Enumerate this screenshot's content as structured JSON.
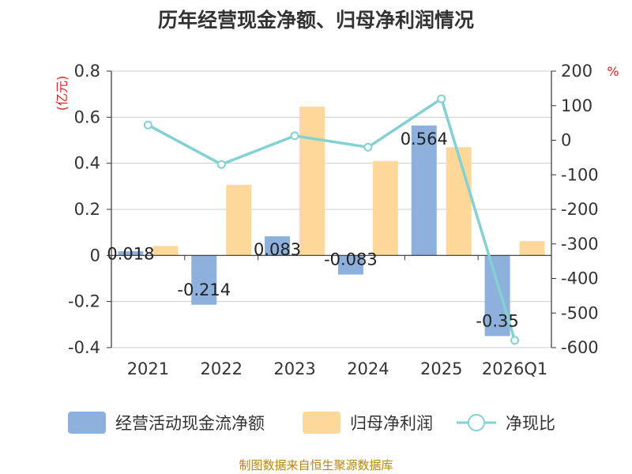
{
  "chart_data": {
    "type": "bar",
    "title": "历年经营现金净额、归母净利润情况",
    "categories": [
      "2021",
      "2022",
      "2023",
      "2024",
      "2025",
      "2026Q1"
    ],
    "left_axis": {
      "unit": "(亿元)",
      "ylim": [
        -0.4,
        0.8
      ],
      "ticks": [
        "0.8",
        "0.6",
        "0.4",
        "0.2",
        "0",
        "-0.2",
        "-0.4"
      ],
      "tick_values": [
        0.8,
        0.6,
        0.4,
        0.2,
        0,
        -0.2,
        -0.4
      ]
    },
    "right_axis": {
      "unit": "%",
      "ylim": [
        -600,
        200
      ],
      "ticks": [
        "200",
        "100",
        "0",
        "-100",
        "-200",
        "-300",
        "-400",
        "-500",
        "-600"
      ],
      "tick_values": [
        200,
        100,
        0,
        -100,
        -200,
        -300,
        -400,
        -500,
        -600
      ]
    },
    "series": [
      {
        "name": "经营活动现金流净额",
        "type": "bar",
        "axis": "left",
        "color": "#8eb0dc",
        "values": [
          0.018,
          -0.214,
          0.083,
          -0.083,
          0.564,
          -0.35
        ],
        "labels": [
          "0.018",
          "-0.214",
          "0.083",
          "-0.083",
          "0.564",
          "-0.35"
        ]
      },
      {
        "name": "归母净利润",
        "type": "bar",
        "axis": "left",
        "color": "#fdd89a",
        "values": [
          0.041,
          0.306,
          0.646,
          0.41,
          0.47,
          0.062
        ]
      },
      {
        "name": "净现比",
        "type": "line",
        "axis": "right",
        "color": "#84d1d4",
        "values": [
          43.9,
          -69.9,
          12.8,
          -20.2,
          120,
          -579
        ]
      }
    ],
    "grid": true,
    "legend": "bottom"
  },
  "source": "制图数据来自恒生聚源数据库"
}
